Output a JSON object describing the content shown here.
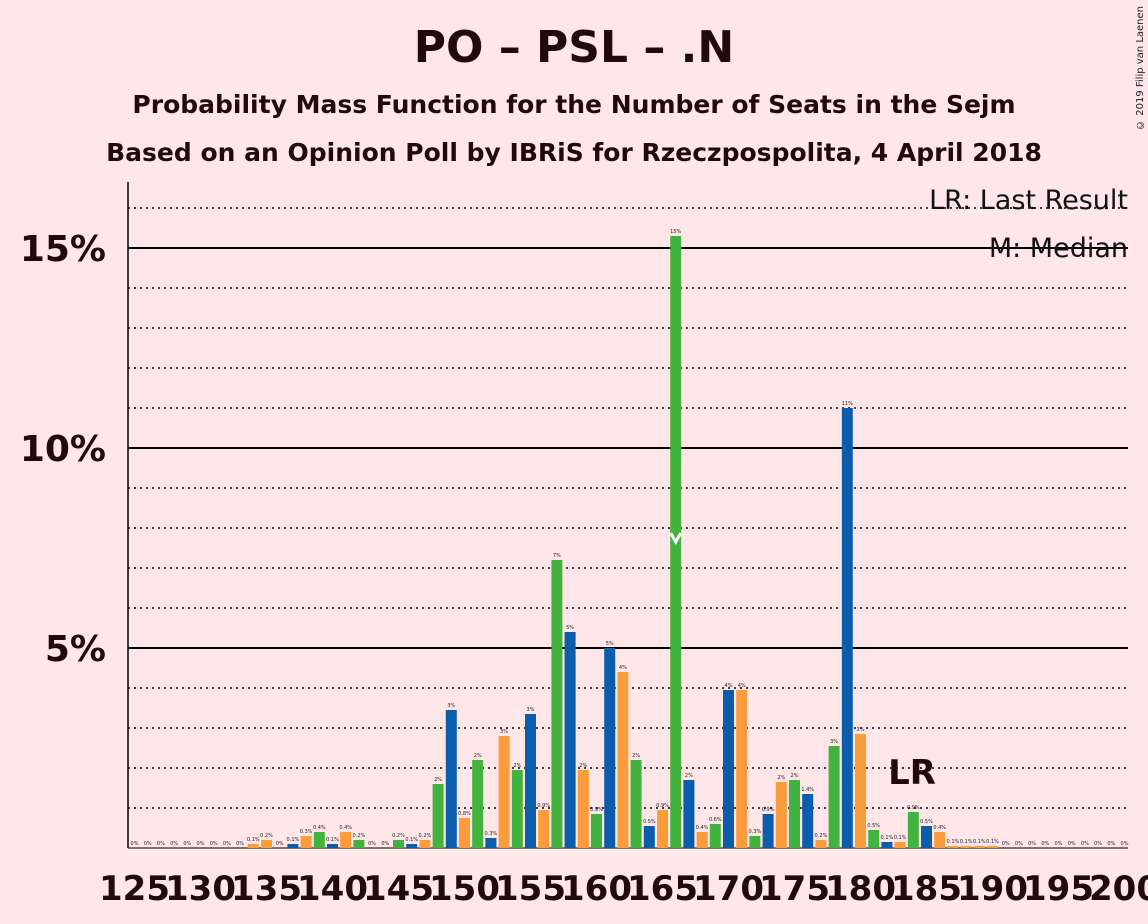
{
  "title": "PO – PSL – .N",
  "subtitle1": "Probability Mass Function for the Number of Seats in the Sejm",
  "subtitle2": "Based on an Opinion Poll by IBRiS for Rzeczpospolita, 4 April 2018",
  "copyright": "© 2019 Filip van Laenen",
  "legend": {
    "lr": "LR: Last Result",
    "m": "M: Median"
  },
  "lr_marker": "LR",
  "colors": {
    "po": "#0b5dab",
    "psl": "#43b340",
    "n": "#fa9b3c",
    "background": "#ffe6e8"
  },
  "chart_data": {
    "type": "bar",
    "xlabel": "",
    "ylabel": "",
    "xlim": [
      125,
      200
    ],
    "ylim": [
      0,
      16.7
    ],
    "x_ticks": [
      125,
      130,
      135,
      140,
      145,
      150,
      155,
      160,
      165,
      170,
      175,
      180,
      185,
      190,
      195,
      200
    ],
    "y_ticks": [
      {
        "value": 5,
        "label": "5%"
      },
      {
        "value": 10,
        "label": "10%"
      },
      {
        "value": 15,
        "label": "15%"
      }
    ],
    "median": 166,
    "last_result": 183,
    "bars": [
      {
        "x": 125,
        "value": 0,
        "label": "0%",
        "color": "n"
      },
      {
        "x": 126,
        "value": 0,
        "label": "0%",
        "color": "n"
      },
      {
        "x": 127,
        "value": 0,
        "label": "0%",
        "color": "n"
      },
      {
        "x": 128,
        "value": 0,
        "label": "0%",
        "color": "n"
      },
      {
        "x": 129,
        "value": 0,
        "label": "0%",
        "color": "n"
      },
      {
        "x": 130,
        "value": 0,
        "label": "0%",
        "color": "n"
      },
      {
        "x": 131,
        "value": 0,
        "label": "0%",
        "color": "n"
      },
      {
        "x": 132,
        "value": 0,
        "label": "0%",
        "color": "n"
      },
      {
        "x": 133,
        "value": 0,
        "label": "0%",
        "color": "n"
      },
      {
        "x": 134,
        "value": 0.1,
        "label": "0.1%",
        "color": "n"
      },
      {
        "x": 135,
        "value": 0.2,
        "label": "0.2%",
        "color": "n"
      },
      {
        "x": 136,
        "value": 0,
        "label": "0%",
        "color": "n"
      },
      {
        "x": 137,
        "value": 0.1,
        "label": "0.1%",
        "color": "po"
      },
      {
        "x": 138,
        "value": 0.3,
        "label": "0.3%",
        "color": "n"
      },
      {
        "x": 139,
        "value": 0.4,
        "label": "0.4%",
        "color": "psl"
      },
      {
        "x": 140,
        "value": 0.1,
        "label": "0.1%",
        "color": "po"
      },
      {
        "x": 141,
        "value": 0.4,
        "label": "0.4%",
        "color": "n"
      },
      {
        "x": 142,
        "value": 0.2,
        "label": "0.2%",
        "color": "psl"
      },
      {
        "x": 143,
        "value": 0,
        "label": "0%",
        "color": "n"
      },
      {
        "x": 144,
        "value": 0,
        "label": "0%",
        "color": "n"
      },
      {
        "x": 145,
        "value": 0.2,
        "label": "0.2%",
        "color": "psl"
      },
      {
        "x": 146,
        "value": 0.1,
        "label": "0.1%",
        "color": "po"
      },
      {
        "x": 147,
        "value": 0.2,
        "label": "0.2%",
        "color": "n"
      },
      {
        "x": 148,
        "value": 1.6,
        "label": "2%",
        "color": "psl"
      },
      {
        "x": 149,
        "value": 3.45,
        "label": "3%",
        "color": "po"
      },
      {
        "x": 150,
        "value": 0.75,
        "label": "0.8%",
        "color": "n"
      },
      {
        "x": 151,
        "value": 2.2,
        "label": "2%",
        "color": "psl"
      },
      {
        "x": 152,
        "value": 0.25,
        "label": "0.3%",
        "color": "po"
      },
      {
        "x": 153,
        "value": 2.8,
        "label": "3%",
        "color": "n"
      },
      {
        "x": 154,
        "value": 1.95,
        "label": "2%",
        "color": "psl"
      },
      {
        "x": 155,
        "value": 3.35,
        "label": "3%",
        "color": "po"
      },
      {
        "x": 156,
        "value": 0.95,
        "label": "0.9%",
        "color": "n"
      },
      {
        "x": 157,
        "value": 7.2,
        "label": "7%",
        "color": "psl"
      },
      {
        "x": 158,
        "value": 5.4,
        "label": "5%",
        "color": "po"
      },
      {
        "x": 159,
        "value": 1.95,
        "label": "2%",
        "color": "n"
      },
      {
        "x": 160,
        "value": 0.85,
        "label": "0.9%",
        "color": "psl"
      },
      {
        "x": 161,
        "value": 5.0,
        "label": "5%",
        "color": "po"
      },
      {
        "x": 162,
        "value": 4.4,
        "label": "4%",
        "color": "n"
      },
      {
        "x": 163,
        "value": 2.2,
        "label": "2%",
        "color": "psl"
      },
      {
        "x": 164,
        "value": 0.55,
        "label": "0.5%",
        "color": "po"
      },
      {
        "x": 165,
        "value": 0.95,
        "label": "0.9%",
        "color": "n"
      },
      {
        "x": 166,
        "value": 15.3,
        "label": "15%",
        "color": "psl"
      },
      {
        "x": 167,
        "value": 1.7,
        "label": "2%",
        "color": "po"
      },
      {
        "x": 168,
        "value": 0.4,
        "label": "0.4%",
        "color": "n"
      },
      {
        "x": 169,
        "value": 0.6,
        "label": "0.6%",
        "color": "psl"
      },
      {
        "x": 170,
        "value": 3.95,
        "label": "4%",
        "color": "po"
      },
      {
        "x": 171,
        "value": 3.95,
        "label": "4%",
        "color": "n"
      },
      {
        "x": 172,
        "value": 0.3,
        "label": "0.3%",
        "color": "psl"
      },
      {
        "x": 173,
        "value": 0.85,
        "label": "0.9%",
        "color": "po"
      },
      {
        "x": 174,
        "value": 1.65,
        "label": "2%",
        "color": "n"
      },
      {
        "x": 175,
        "value": 1.7,
        "label": "2%",
        "color": "psl"
      },
      {
        "x": 176,
        "value": 1.35,
        "label": "1.4%",
        "color": "po"
      },
      {
        "x": 177,
        "value": 0.2,
        "label": "0.2%",
        "color": "n"
      },
      {
        "x": 178,
        "value": 2.55,
        "label": "3%",
        "color": "psl"
      },
      {
        "x": 179,
        "value": 11.0,
        "label": "11%",
        "color": "po"
      },
      {
        "x": 180,
        "value": 2.85,
        "label": "3%",
        "color": "n"
      },
      {
        "x": 181,
        "value": 0.45,
        "label": "0.5%",
        "color": "psl"
      },
      {
        "x": 182,
        "value": 0.15,
        "label": "0.1%",
        "color": "po"
      },
      {
        "x": 183,
        "value": 0.15,
        "label": "0.1%",
        "color": "n"
      },
      {
        "x": 184,
        "value": 0.9,
        "label": "0.9%",
        "color": "psl"
      },
      {
        "x": 185,
        "value": 0.55,
        "label": "0.5%",
        "color": "po"
      },
      {
        "x": 186,
        "value": 0.4,
        "label": "0.4%",
        "color": "n"
      },
      {
        "x": 187,
        "value": 0.05,
        "label": "0.1%",
        "color": "n"
      },
      {
        "x": 188,
        "value": 0.05,
        "label": "0.1%",
        "color": "n"
      },
      {
        "x": 189,
        "value": 0.05,
        "label": "0.1%",
        "color": "n"
      },
      {
        "x": 190,
        "value": 0.05,
        "label": "0.1%",
        "color": "n"
      },
      {
        "x": 191,
        "value": 0,
        "label": "0%",
        "color": "n"
      },
      {
        "x": 192,
        "value": 0,
        "label": "0%",
        "color": "n"
      },
      {
        "x": 193,
        "value": 0,
        "label": "0%",
        "color": "n"
      },
      {
        "x": 194,
        "value": 0,
        "label": "0%",
        "color": "n"
      },
      {
        "x": 195,
        "value": 0,
        "label": "0%",
        "color": "n"
      },
      {
        "x": 196,
        "value": 0,
        "label": "0%",
        "color": "n"
      },
      {
        "x": 197,
        "value": 0,
        "label": "0%",
        "color": "n"
      },
      {
        "x": 198,
        "value": 0,
        "label": "0%",
        "color": "n"
      },
      {
        "x": 199,
        "value": 0,
        "label": "0%",
        "color": "n"
      },
      {
        "x": 200,
        "value": 0,
        "label": "0%",
        "color": "n"
      }
    ]
  }
}
